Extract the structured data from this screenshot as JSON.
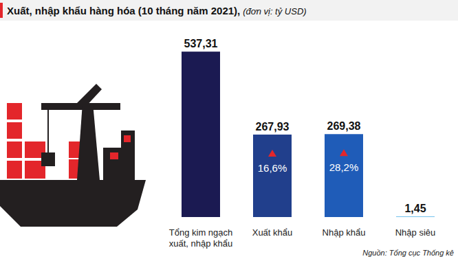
{
  "chart_data": {
    "type": "bar",
    "title": "Xuất, nhập khẩu hàng hóa (10 tháng năm 2021),",
    "subtitle": "(đơn vị: tỷ USD)",
    "source": "Nguồn: Tổng cục Thống kê",
    "categories": [
      "Tổng kim ngạch xuất, nhập khẩu",
      "Xuất khẩu",
      "Nhập khẩu",
      "Nhập siêu"
    ],
    "values": [
      537.31,
      267.93,
      269.38,
      1.45
    ],
    "value_labels": [
      "537,31",
      "267,93",
      "269,38",
      "1,45"
    ],
    "colors": [
      "#1b1a52",
      "#213f8c",
      "#1f5cb8",
      "#29a3e3"
    ],
    "ylim": [
      0,
      560
    ],
    "tick_labels": false,
    "grid": false,
    "data_labels": true,
    "annotations": [
      {
        "category": "Xuất khẩu",
        "text": "16,6%"
      },
      {
        "category": "Nhập khẩu",
        "text": "28,2%"
      }
    ]
  }
}
